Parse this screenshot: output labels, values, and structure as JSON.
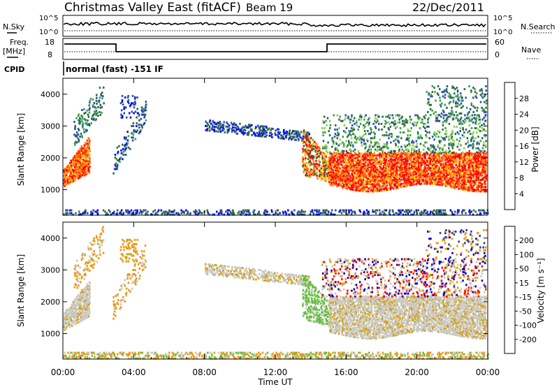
{
  "header": {
    "station": "Christmas Valley East (fitACF)",
    "beam": "Beam 19",
    "date": "22/Dec/2011"
  },
  "top_panels": {
    "nsky_label": "N.Sky",
    "nsky_ticks": [
      "10^5",
      "10^0"
    ],
    "nsearch_label": "N.Search",
    "nsearch_ticks": [
      "10^5",
      "10^0"
    ],
    "freq_label": "Freq.",
    "freq_unit": "[MHz]",
    "freq_ticks": [
      "18",
      "8"
    ],
    "nave_label": "Nave",
    "nave_ticks": [
      "60",
      "0"
    ],
    "cpid_label": "CPID",
    "cpid_text": "normal (fast) -151 IF"
  },
  "chart_data": [
    {
      "type": "heatmap",
      "name": "power",
      "ylabel": "Slant Range [km]",
      "yticks": [
        "4000",
        "3000",
        "2000",
        "1000"
      ],
      "ylim": [
        200,
        4500
      ],
      "colorbar_label": "Power [dB]",
      "colorbar_ticks": [
        "28",
        "24",
        "20",
        "16",
        "12",
        "8",
        "4"
      ],
      "colors": [
        "#0000ff",
        "#2a4fa8",
        "#2e6b3d",
        "#3aa14e",
        "#8bd14a",
        "#d4c400",
        "#ffb300",
        "#ff7a00",
        "#ff3c00",
        "#ff0000"
      ]
    },
    {
      "type": "heatmap",
      "name": "velocity",
      "ylabel": "Slant Range [km]",
      "yticks": [
        "4000",
        "3000",
        "2000",
        "1000"
      ],
      "ylim": [
        200,
        4500
      ],
      "colorbar_label": "Velocity [m s⁻¹]",
      "colorbar_ticks": [
        "200",
        "100",
        "50",
        "15",
        "-15",
        "-50",
        "-100",
        "-200"
      ],
      "colors": [
        "#0000cc",
        "#1f3f9f",
        "#2e6b3d",
        "#5fbf3a",
        "#c8c8c0",
        "#d4a020",
        "#ff9000",
        "#ff5000",
        "#ff0000"
      ]
    }
  ],
  "time_axis": {
    "label": "Time UT",
    "ticks": [
      "00:00",
      "04:00",
      "08:00",
      "12:00",
      "16:00",
      "20:00",
      "00:00"
    ]
  }
}
